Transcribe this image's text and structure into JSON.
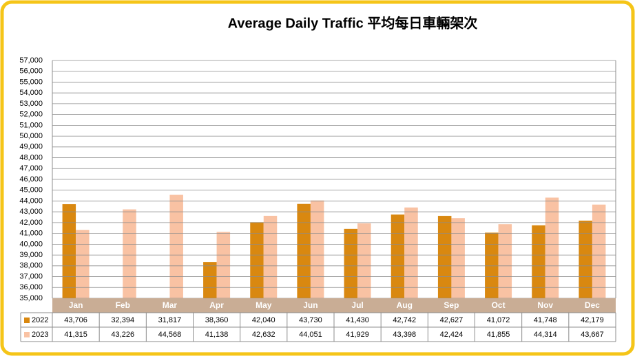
{
  "chart_data": {
    "type": "bar",
    "title": "Average Daily Traffic 平均每日車輛架次",
    "categories": [
      "Jan",
      "Feb",
      "Mar",
      "Apr",
      "May",
      "Jun",
      "Jul",
      "Aug",
      "Sep",
      "Oct",
      "Nov",
      "Dec"
    ],
    "series": [
      {
        "name": "2022",
        "color": "#d98810",
        "values": [
          43706,
          32394,
          31817,
          38360,
          42040,
          43730,
          41430,
          42742,
          42627,
          41072,
          41748,
          42179
        ],
        "value_labels": [
          "43,706",
          "32,394",
          "31,817",
          "38,360",
          "42,040",
          "43,730",
          "41,430",
          "42,742",
          "42,627",
          "41,072",
          "41,748",
          "42,179"
        ]
      },
      {
        "name": "2023",
        "color": "#f9c2a3",
        "values": [
          41315,
          43226,
          44568,
          41138,
          42632,
          44051,
          41929,
          43398,
          42424,
          41855,
          44314,
          43667
        ],
        "value_labels": [
          "41,315",
          "43,226",
          "44,568",
          "41,138",
          "42,632",
          "44,051",
          "41,929",
          "43,398",
          "42,424",
          "41,855",
          "44,314",
          "43,667"
        ]
      }
    ],
    "ylim": [
      35000,
      57000
    ],
    "yticks": [
      {
        "value": 35000,
        "label": "35,000"
      },
      {
        "value": 36000,
        "label": "36,000"
      },
      {
        "value": 37000,
        "label": "37,000"
      },
      {
        "value": 38000,
        "label": "38,000"
      },
      {
        "value": 39000,
        "label": "39,000"
      },
      {
        "value": 40000,
        "label": "40,000"
      },
      {
        "value": 41000,
        "label": "41,000"
      },
      {
        "value": 42000,
        "label": "42,000"
      },
      {
        "value": 43000,
        "label": "43,000"
      },
      {
        "value": 44000,
        "label": "44,000"
      },
      {
        "value": 45000,
        "label": "45,000"
      },
      {
        "value": 46000,
        "label": "46,000"
      },
      {
        "value": 47000,
        "label": "47,000"
      },
      {
        "value": 48000,
        "label": "48,000"
      },
      {
        "value": 49000,
        "label": "49,000"
      },
      {
        "value": 50000,
        "label": "50,000"
      },
      {
        "value": 51000,
        "label": "51,000"
      },
      {
        "value": 52000,
        "label": "52,000"
      },
      {
        "value": 53000,
        "label": "53,000"
      },
      {
        "value": 54000,
        "label": "54,000"
      },
      {
        "value": 55000,
        "label": "55,000"
      },
      {
        "value": 56000,
        "label": "56,000"
      },
      {
        "value": 57000,
        "label": "57,000"
      }
    ],
    "grid": true
  }
}
